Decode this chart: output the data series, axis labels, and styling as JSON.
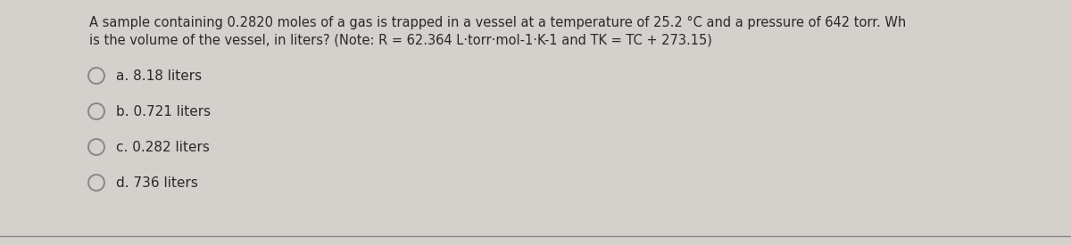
{
  "background_color": "#d4d0cc",
  "question_line1": "A sample containing 0.2820 moles of a gas is trapped in a vessel at a temperature of 25.2 °C and a pressure of 642 torr. Wh",
  "question_line2": "is the volume of the vessel, in liters? (Note: R = 62.364 L·torr·mol-1·K-1 and TK = TC + 273.15)",
  "options": [
    "a. 8.18 liters",
    "b. 0.721 liters",
    "c. 0.282 liters",
    "d. 736 liters"
  ],
  "text_color": "#2a2a2a",
  "circle_color": "#888888",
  "font_size_question": 10.5,
  "font_size_options": 11.0,
  "fig_width": 12.0,
  "fig_height": 2.75
}
